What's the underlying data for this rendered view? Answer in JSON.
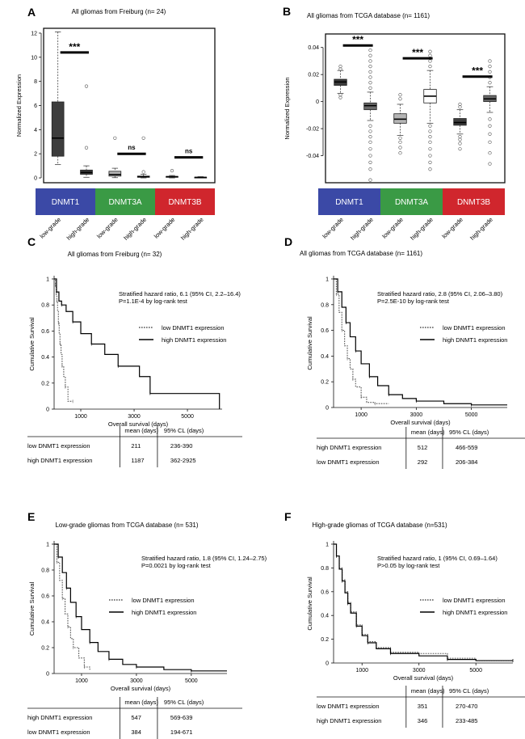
{
  "figure": {
    "panel_labels": [
      "A",
      "B",
      "C",
      "D",
      "E",
      "F"
    ]
  },
  "chart_data": [
    {
      "panel": "A",
      "type": "boxplot",
      "title": "All gliomas from Freiburg (n= 24)",
      "ylabel": "Normalized Expression",
      "ylim": [
        -0.4,
        12.4
      ],
      "yticks": [
        0,
        2,
        4,
        6,
        8,
        10,
        12
      ],
      "ytick_labels": [
        "0",
        "2",
        "4",
        "6",
        "8",
        "10",
        "12"
      ],
      "genes": [
        {
          "name": "DNMT1",
          "color": "#3b49a6"
        },
        {
          "name": "DNMT3A",
          "color": "#3a9a45"
        },
        {
          "name": "DNMT3B",
          "color": "#d0262d"
        }
      ],
      "grade_labels": [
        "low-grade",
        "high-grade",
        "low-grade",
        "high-grade",
        "low-grade",
        "high-grade"
      ],
      "boxes": [
        {
          "gene": "DNMT1",
          "grade": "low-grade",
          "fill": "#3d3d3d",
          "whislo": 1.1,
          "q1": 1.8,
          "med": 3.3,
          "q3": 6.3,
          "whishi": 12.1,
          "outliers": []
        },
        {
          "gene": "DNMT1",
          "grade": "high-grade",
          "fill": "#3d3d3d",
          "whislo": 0.05,
          "q1": 0.3,
          "med": 0.45,
          "q3": 0.65,
          "whishi": 1.0,
          "outliers": [
            2.5,
            7.6
          ]
        },
        {
          "gene": "DNMT3A",
          "grade": "low-grade",
          "fill": "#b5b5b5",
          "whislo": 0.02,
          "q1": 0.15,
          "med": 0.28,
          "q3": 0.55,
          "whishi": 0.8,
          "outliers": [
            3.3
          ]
        },
        {
          "gene": "DNMT3A",
          "grade": "high-grade",
          "fill": "#ffffff",
          "whislo": 0.0,
          "q1": 0.05,
          "med": 0.1,
          "q3": 0.15,
          "whishi": 0.3,
          "outliers": [
            0.5,
            3.3
          ]
        },
        {
          "gene": "DNMT3B",
          "grade": "low-grade",
          "fill": "#3d3d3d",
          "whislo": 0.0,
          "q1": 0.05,
          "med": 0.1,
          "q3": 0.12,
          "whishi": 0.2,
          "outliers": [
            0.6
          ]
        },
        {
          "gene": "DNMT3B",
          "grade": "high-grade",
          "fill": "#3d3d3d",
          "whislo": 0.0,
          "q1": 0.02,
          "med": 0.04,
          "q3": 0.06,
          "whishi": 0.1,
          "outliers": []
        }
      ],
      "significance": [
        {
          "label": "***",
          "pair": [
            0,
            1
          ],
          "y": 10.4
        },
        {
          "label": "ns",
          "pair": [
            2,
            3
          ],
          "y": 2.0
        },
        {
          "label": "ns",
          "pair": [
            4,
            5
          ],
          "y": 1.7
        }
      ]
    },
    {
      "panel": "B",
      "type": "boxplot",
      "title": "All gliomas from TCGA database (n= 1161)",
      "ylabel": "Normalized Expression",
      "ylim": [
        -0.06,
        0.05
      ],
      "yticks": [
        -0.04,
        -0.02,
        0,
        0.02,
        0.04
      ],
      "ytick_labels": [
        "-0.04",
        "-0.02",
        "0",
        "0.02",
        "0.04"
      ],
      "genes": [
        {
          "name": "DNMT1",
          "color": "#3b49a6"
        },
        {
          "name": "DNMT3A",
          "color": "#3a9a45"
        },
        {
          "name": "DNMT3B",
          "color": "#d0262d"
        }
      ],
      "grade_labels": [
        "low-grade",
        "high-grade",
        "low-grade",
        "high-grade",
        "low-grade",
        "high-grade"
      ],
      "boxes": [
        {
          "gene": "DNMT1",
          "grade": "low-grade",
          "fill": "#3d3d3d",
          "whislo": 0.006,
          "q1": 0.012,
          "med": 0.0145,
          "q3": 0.0165,
          "whishi": 0.023,
          "outliers": [
            0.003,
            0.005,
            0.024,
            0.026
          ]
        },
        {
          "gene": "DNMT1",
          "grade": "high-grade",
          "fill": "#6a6a6a",
          "whislo": -0.014,
          "q1": -0.006,
          "med": -0.003,
          "q3": -0.001,
          "whishi": 0.007,
          "outliers": [
            -0.058,
            -0.05,
            -0.045,
            -0.04,
            -0.035,
            -0.03,
            -0.026,
            -0.022,
            -0.018,
            0.01,
            0.014,
            0.018,
            0.022,
            0.026,
            0.03,
            0.034,
            0.038
          ]
        },
        {
          "gene": "DNMT3A",
          "grade": "low-grade",
          "fill": "#b5b5b5",
          "whislo": -0.025,
          "q1": -0.016,
          "med": -0.013,
          "q3": -0.009,
          "whishi": -0.002,
          "outliers": [
            -0.038,
            -0.034,
            -0.03,
            -0.027,
            0.002,
            0.005
          ]
        },
        {
          "gene": "DNMT3A",
          "grade": "high-grade",
          "fill": "#ffffff",
          "whislo": -0.016,
          "q1": -0.001,
          "med": 0.004,
          "q3": 0.009,
          "whishi": 0.023,
          "outliers": [
            -0.05,
            -0.045,
            -0.04,
            -0.035,
            -0.03,
            -0.026,
            -0.022,
            -0.018,
            0.026,
            0.03,
            0.034,
            0.037
          ]
        },
        {
          "gene": "DNMT3B",
          "grade": "low-grade",
          "fill": "#3d3d3d",
          "whislo": -0.024,
          "q1": -0.0175,
          "med": -0.0155,
          "q3": -0.0125,
          "whishi": -0.006,
          "outliers": [
            -0.035,
            -0.031,
            -0.028,
            -0.026,
            -0.004,
            -0.002
          ]
        },
        {
          "gene": "DNMT3B",
          "grade": "high-grade",
          "fill": "#6a6a6a",
          "whislo": -0.008,
          "q1": 0.0,
          "med": 0.002,
          "q3": 0.0045,
          "whishi": 0.011,
          "outliers": [
            -0.046,
            -0.038,
            -0.03,
            -0.024,
            -0.018,
            -0.013,
            0.014,
            0.018,
            0.022,
            0.026,
            0.03
          ]
        }
      ],
      "significance": [
        {
          "label": "***",
          "pair": [
            0,
            1
          ],
          "y": 0.0415
        },
        {
          "label": "***",
          "pair": [
            2,
            3
          ],
          "y": 0.032
        },
        {
          "label": "***",
          "pair": [
            4,
            5
          ],
          "y": 0.0185
        }
      ]
    },
    {
      "panel": "C",
      "type": "line",
      "title": "All gliomas from Freiburg (n= 32)",
      "xlabel": "Overall survival (days)",
      "ylabel": "Cumulative Survival",
      "xlim": [
        0,
        6300
      ],
      "ylim": [
        0,
        1
      ],
      "xticks": [
        1000,
        3000,
        5000
      ],
      "yticks": [
        0,
        0.2,
        0.4,
        0.6,
        0.8,
        1
      ],
      "ytick_labels": [
        "0",
        "0.2",
        "0.4",
        "0.6",
        "0.8",
        "1"
      ],
      "annotation": [
        "Stratified hazard ratio, 6.1 (95% CI, 2.2–16.4)",
        "P=1.1E-4 by log-rank test"
      ],
      "legend": [
        "low DNMT1 expression",
        "high DNMT1 expression"
      ],
      "series": [
        {
          "name": "low DNMT1 expression",
          "style": "dotted",
          "x": [
            0,
            50,
            80,
            100,
            130,
            160,
            190,
            220,
            260,
            300,
            360,
            420,
            520,
            700
          ],
          "y": [
            1,
            0.95,
            0.88,
            0.83,
            0.75,
            0.66,
            0.58,
            0.5,
            0.42,
            0.33,
            0.25,
            0.17,
            0.06,
            0.06
          ]
        },
        {
          "name": "high DNMT1 expression",
          "style": "solid",
          "x": [
            0,
            90,
            180,
            280,
            450,
            700,
            1000,
            1400,
            1900,
            2400,
            3200,
            3600,
            6200
          ],
          "y": [
            1,
            0.9,
            0.83,
            0.8,
            0.75,
            0.67,
            0.58,
            0.5,
            0.42,
            0.33,
            0.25,
            0.12,
            0
          ]
        }
      ],
      "table": {
        "headers": [
          "",
          "mean (days)",
          "95% CL (days)"
        ],
        "rows": [
          [
            "low DNMT1 expression",
            "211",
            "236-390"
          ],
          [
            "high DNMT1 expression",
            "1187",
            "362-2925"
          ]
        ]
      }
    },
    {
      "panel": "D",
      "type": "line",
      "title": "All gliomas from TCGA database (n= 1161)",
      "xlabel": "Overall survival (days)",
      "ylabel": "Cumulative Survival",
      "xlim": [
        0,
        6300
      ],
      "ylim": [
        0,
        1
      ],
      "xticks": [
        1000,
        3000,
        5000
      ],
      "yticks": [
        0,
        0.2,
        0.4,
        0.6,
        0.8,
        1
      ],
      "ytick_labels": [
        "0",
        "0.2",
        "0.4",
        "0.6",
        "0.8",
        "1"
      ],
      "annotation": [
        "Stratified hazard ratio, 2.8 (95% CI, 2.06–3.80)",
        "P=2.5E-10 by log-rank test"
      ],
      "legend": [
        "low DNMT1 expression",
        "high DNMT1 expression"
      ],
      "series": [
        {
          "name": "low DNMT1 expression",
          "style": "dotted",
          "x": [
            0,
            100,
            200,
            300,
            400,
            500,
            600,
            700,
            800,
            1000,
            1200,
            1500,
            2000
          ],
          "y": [
            1,
            0.88,
            0.74,
            0.6,
            0.48,
            0.38,
            0.3,
            0.22,
            0.16,
            0.08,
            0.04,
            0.03,
            0.03
          ]
        },
        {
          "name": "high DNMT1 expression",
          "style": "solid",
          "x": [
            0,
            150,
            300,
            450,
            600,
            800,
            1000,
            1300,
            1600,
            2000,
            2500,
            3000,
            4000,
            5000,
            6300
          ],
          "y": [
            1,
            0.9,
            0.78,
            0.66,
            0.55,
            0.44,
            0.34,
            0.24,
            0.17,
            0.1,
            0.07,
            0.05,
            0.03,
            0.02,
            0.02
          ]
        }
      ],
      "table": {
        "headers": [
          "",
          "mean (days)",
          "95% CL (days)"
        ],
        "rows": [
          [
            "high DNMT1 expression",
            "512",
            "466-559"
          ],
          [
            "low DNMT1 expression",
            "292",
            "206-384"
          ]
        ]
      }
    },
    {
      "panel": "E",
      "type": "line",
      "title": "Low-grade gliomas from TCGA database (n= 531)",
      "xlabel": "Overall survival (days)",
      "ylabel": "Cumulative Survival",
      "xlim": [
        0,
        6300
      ],
      "ylim": [
        0,
        1
      ],
      "xticks": [
        1000,
        3000,
        5000
      ],
      "yticks": [
        0,
        0.2,
        0.4,
        0.6,
        0.8,
        1
      ],
      "ytick_labels": [
        "0",
        "0.2",
        "0.4",
        "0.6",
        "0.8",
        "1"
      ],
      "annotation": [
        "Stratified hazard ratio, 1.8 (95% CI, 1.24–2.75)",
        "P=0.0021 by log-rank test"
      ],
      "legend": [
        "low DNMT1 expression",
        "high DNMT1 expression"
      ],
      "series": [
        {
          "name": "low DNMT1 expression",
          "style": "dotted",
          "x": [
            0,
            100,
            200,
            300,
            400,
            500,
            600,
            700,
            900,
            1100,
            1300
          ],
          "y": [
            1,
            0.86,
            0.72,
            0.58,
            0.46,
            0.36,
            0.27,
            0.2,
            0.12,
            0.05,
            0.03
          ]
        },
        {
          "name": "high DNMT1 expression",
          "style": "solid",
          "x": [
            0,
            150,
            300,
            450,
            600,
            800,
            1000,
            1300,
            1600,
            2000,
            2500,
            3000,
            4000,
            5000,
            6300
          ],
          "y": [
            1,
            0.9,
            0.78,
            0.66,
            0.55,
            0.44,
            0.34,
            0.24,
            0.17,
            0.11,
            0.07,
            0.05,
            0.03,
            0.02,
            0.02
          ]
        }
      ],
      "table": {
        "headers": [
          "",
          "mean (days)",
          "95% CL (days)"
        ],
        "rows": [
          [
            "high DNMT1 expression",
            "547",
            "569-639"
          ],
          [
            "low DNMT1 expression",
            "384",
            "194-671"
          ]
        ]
      }
    },
    {
      "panel": "F",
      "type": "line",
      "title": "High-grade gliomas of TCGA database (n=531)",
      "xlabel": "Overall survival (days)",
      "ylabel": "Cumulative Survival",
      "xlim": [
        0,
        6300
      ],
      "ylim": [
        0,
        1
      ],
      "xticks": [
        1000,
        3000,
        5000
      ],
      "yticks": [
        0,
        0.2,
        0.4,
        0.6,
        0.8,
        1
      ],
      "ytick_labels": [
        "0",
        "0.2",
        "0.4",
        "0.6",
        "0.8",
        "1"
      ],
      "annotation": [
        "Stratified hazard ratio, 1 (95% CI, 0.69–1.64)",
        "P>0.05 by log-rank test"
      ],
      "legend": [
        "low DNMT1 expression",
        "high DNMT1 expression"
      ],
      "series": [
        {
          "name": "low DNMT1 expression",
          "style": "dotted",
          "x": [
            0,
            100,
            200,
            300,
            400,
            500,
            600,
            800,
            1000,
            1200,
            1500,
            2000,
            3000,
            4000,
            5000,
            6300
          ],
          "y": [
            1,
            0.9,
            0.8,
            0.7,
            0.6,
            0.51,
            0.43,
            0.32,
            0.24,
            0.18,
            0.13,
            0.09,
            0.08,
            0.04,
            0.02,
            0.02
          ]
        },
        {
          "name": "high DNMT1 expression",
          "style": "solid",
          "x": [
            0,
            100,
            200,
            300,
            400,
            500,
            600,
            800,
            1000,
            1200,
            1500,
            2000,
            3000,
            4000,
            5000,
            6300
          ],
          "y": [
            1,
            0.9,
            0.79,
            0.69,
            0.59,
            0.5,
            0.42,
            0.31,
            0.23,
            0.17,
            0.12,
            0.08,
            0.06,
            0.03,
            0.02,
            0.02
          ]
        }
      ],
      "table": {
        "headers": [
          "",
          "mean (days)",
          "95% CL (days)"
        ],
        "rows": [
          [
            "low DNMT1 expression",
            "351",
            "270-470"
          ],
          [
            "high DNMT1 expression",
            "346",
            "233-485"
          ]
        ]
      }
    }
  ]
}
